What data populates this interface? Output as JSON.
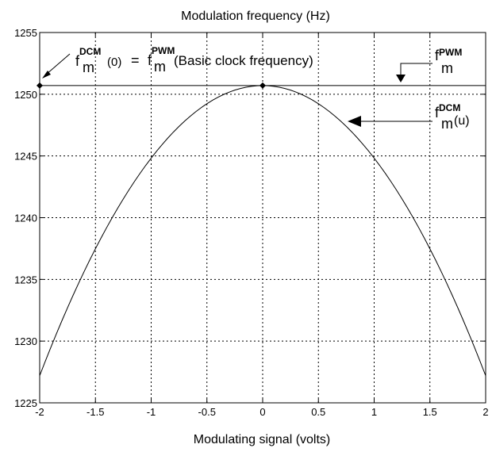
{
  "chart_data": {
    "type": "line",
    "title": "Modulation frequency (Hz)",
    "xlabel": "Modulating signal (volts)",
    "ylabel": "",
    "xlim": [
      -2,
      2
    ],
    "ylim": [
      1225,
      1255
    ],
    "x_ticks": [
      -2,
      -1.5,
      -1,
      -0.5,
      0,
      0.5,
      1,
      1.5,
      2
    ],
    "x_tick_labels": [
      "-2",
      "-1.5",
      "-1",
      "-0.5",
      "0",
      "0.5",
      "1",
      "1.5",
      "2"
    ],
    "y_ticks": [
      1225,
      1230,
      1235,
      1240,
      1245,
      1250,
      1255
    ],
    "y_tick_labels": [
      "1225",
      "1230",
      "1235",
      "1240",
      "1245",
      "1250",
      "1255"
    ],
    "grid": true,
    "series": [
      {
        "type": "line",
        "x": [
          -2,
          -1.75,
          -1.5,
          -1.25,
          -1,
          -0.75,
          -0.5,
          -0.25,
          0,
          0.25,
          0.5,
          0.75,
          1,
          1.25,
          1.5,
          1.75,
          2
        ],
        "y": [
          1227.2,
          1232.6,
          1237.4,
          1241.5,
          1244.8,
          1247.4,
          1249.2,
          1250.3,
          1250.7,
          1250.3,
          1249.2,
          1247.4,
          1244.8,
          1241.5,
          1237.4,
          1232.6,
          1227.2
        ]
      },
      {
        "type": "line",
        "x": [
          -2,
          2
        ],
        "y": [
          1250.7,
          1250.7
        ]
      }
    ],
    "markers": [
      {
        "x": -2,
        "y": 1250.7
      },
      {
        "x": 0,
        "y": 1250.7
      }
    ],
    "annotations": {
      "left": {
        "f": "f",
        "sub": "m",
        "sup": "DCM",
        "arg": "(0)",
        "eq": "=",
        "f2": "f",
        "sub2": "m",
        "sup2": "PWM",
        "rest": "(Basic clock frequency)"
      },
      "pwm": {
        "f": "f",
        "sub": "m",
        "sup": "PWM"
      },
      "dcm": {
        "f": "f",
        "sub": "m",
        "sup": "DCM",
        "arg": "(u)"
      }
    }
  }
}
